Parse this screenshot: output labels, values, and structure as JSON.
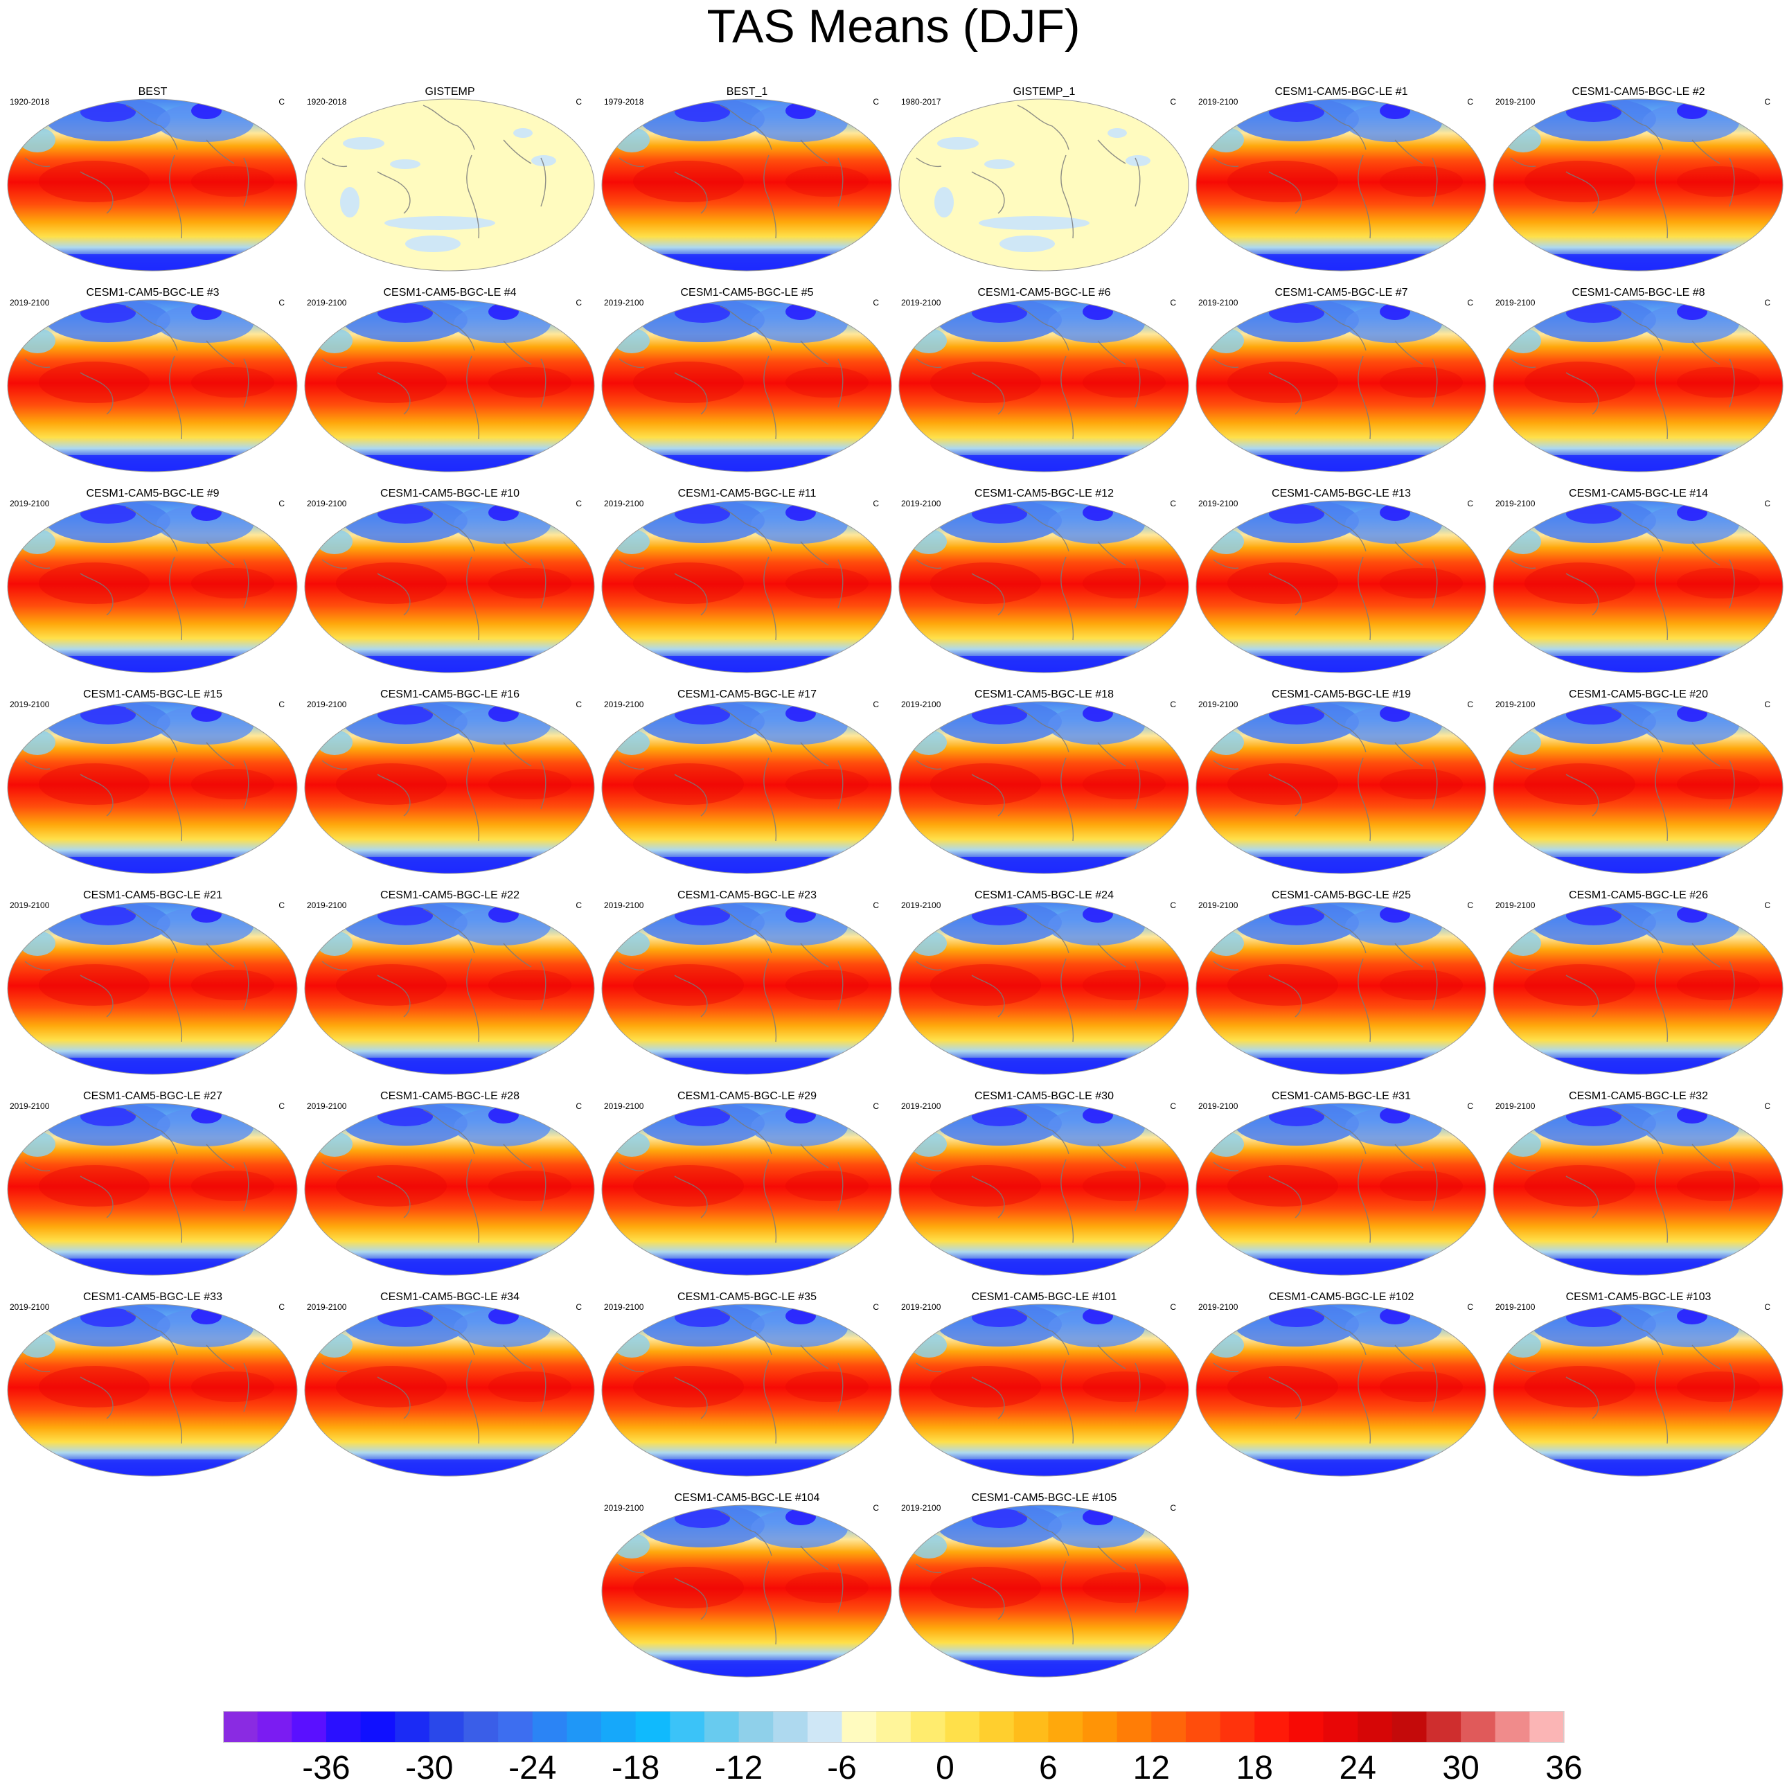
{
  "title": "TAS Means (DJF)",
  "unit_label": "C",
  "panels": [
    {
      "title": "BEST",
      "period": "1920-2018",
      "field": "model"
    },
    {
      "title": "GISTEMP",
      "period": "1920-2018",
      "field": "anomaly"
    },
    {
      "title": "BEST_1",
      "period": "1979-2018",
      "field": "model"
    },
    {
      "title": "GISTEMP_1",
      "period": "1980-2017",
      "field": "anomaly"
    },
    {
      "title": "CESM1-CAM5-BGC-LE #1",
      "period": "2019-2100",
      "field": "model"
    },
    {
      "title": "CESM1-CAM5-BGC-LE #2",
      "period": "2019-2100",
      "field": "model"
    },
    {
      "title": "CESM1-CAM5-BGC-LE #3",
      "period": "2019-2100",
      "field": "model"
    },
    {
      "title": "CESM1-CAM5-BGC-LE #4",
      "period": "2019-2100",
      "field": "model"
    },
    {
      "title": "CESM1-CAM5-BGC-LE #5",
      "period": "2019-2100",
      "field": "model"
    },
    {
      "title": "CESM1-CAM5-BGC-LE #6",
      "period": "2019-2100",
      "field": "model"
    },
    {
      "title": "CESM1-CAM5-BGC-LE #7",
      "period": "2019-2100",
      "field": "model"
    },
    {
      "title": "CESM1-CAM5-BGC-LE #8",
      "period": "2019-2100",
      "field": "model"
    },
    {
      "title": "CESM1-CAM5-BGC-LE #9",
      "period": "2019-2100",
      "field": "model"
    },
    {
      "title": "CESM1-CAM5-BGC-LE #10",
      "period": "2019-2100",
      "field": "model"
    },
    {
      "title": "CESM1-CAM5-BGC-LE #11",
      "period": "2019-2100",
      "field": "model"
    },
    {
      "title": "CESM1-CAM5-BGC-LE #12",
      "period": "2019-2100",
      "field": "model"
    },
    {
      "title": "CESM1-CAM5-BGC-LE #13",
      "period": "2019-2100",
      "field": "model"
    },
    {
      "title": "CESM1-CAM5-BGC-LE #14",
      "period": "2019-2100",
      "field": "model"
    },
    {
      "title": "CESM1-CAM5-BGC-LE #15",
      "period": "2019-2100",
      "field": "model"
    },
    {
      "title": "CESM1-CAM5-BGC-LE #16",
      "period": "2019-2100",
      "field": "model"
    },
    {
      "title": "CESM1-CAM5-BGC-LE #17",
      "period": "2019-2100",
      "field": "model"
    },
    {
      "title": "CESM1-CAM5-BGC-LE #18",
      "period": "2019-2100",
      "field": "model"
    },
    {
      "title": "CESM1-CAM5-BGC-LE #19",
      "period": "2019-2100",
      "field": "model"
    },
    {
      "title": "CESM1-CAM5-BGC-LE #20",
      "period": "2019-2100",
      "field": "model"
    },
    {
      "title": "CESM1-CAM5-BGC-LE #21",
      "period": "2019-2100",
      "field": "model"
    },
    {
      "title": "CESM1-CAM5-BGC-LE #22",
      "period": "2019-2100",
      "field": "model"
    },
    {
      "title": "CESM1-CAM5-BGC-LE #23",
      "period": "2019-2100",
      "field": "model"
    },
    {
      "title": "CESM1-CAM5-BGC-LE #24",
      "period": "2019-2100",
      "field": "model"
    },
    {
      "title": "CESM1-CAM5-BGC-LE #25",
      "period": "2019-2100",
      "field": "model"
    },
    {
      "title": "CESM1-CAM5-BGC-LE #26",
      "period": "2019-2100",
      "field": "model"
    },
    {
      "title": "CESM1-CAM5-BGC-LE #27",
      "period": "2019-2100",
      "field": "model"
    },
    {
      "title": "CESM1-CAM5-BGC-LE #28",
      "period": "2019-2100",
      "field": "model"
    },
    {
      "title": "CESM1-CAM5-BGC-LE #29",
      "period": "2019-2100",
      "field": "model"
    },
    {
      "title": "CESM1-CAM5-BGC-LE #30",
      "period": "2019-2100",
      "field": "model"
    },
    {
      "title": "CESM1-CAM5-BGC-LE #31",
      "period": "2019-2100",
      "field": "model"
    },
    {
      "title": "CESM1-CAM5-BGC-LE #32",
      "period": "2019-2100",
      "field": "model"
    },
    {
      "title": "CESM1-CAM5-BGC-LE #33",
      "period": "2019-2100",
      "field": "model"
    },
    {
      "title": "CESM1-CAM5-BGC-LE #34",
      "period": "2019-2100",
      "field": "model"
    },
    {
      "title": "CESM1-CAM5-BGC-LE #35",
      "period": "2019-2100",
      "field": "model"
    },
    {
      "title": "CESM1-CAM5-BGC-LE #101",
      "period": "2019-2100",
      "field": "model"
    },
    {
      "title": "CESM1-CAM5-BGC-LE #102",
      "period": "2019-2100",
      "field": "model"
    },
    {
      "title": "CESM1-CAM5-BGC-LE #103",
      "period": "2019-2100",
      "field": "model"
    },
    {
      "title": "CESM1-CAM5-BGC-LE #104",
      "period": "2019-2100",
      "field": "model"
    },
    {
      "title": "CESM1-CAM5-BGC-LE #105",
      "period": "2019-2100",
      "field": "model"
    }
  ],
  "colorbar": {
    "tick_labels": [
      "-36",
      "-30",
      "-24",
      "-18",
      "-12",
      "-6",
      "0",
      "6",
      "12",
      "18",
      "24",
      "30",
      "36"
    ],
    "colors": [
      "#8a2be2",
      "#7b1cf2",
      "#5a10ff",
      "#2a10ff",
      "#1010ff",
      "#1b2bf5",
      "#2a48ea",
      "#3a5ee8",
      "#3d6ef0",
      "#2b84f5",
      "#1f97f7",
      "#16a8fa",
      "#10bafd",
      "#3bc3f8",
      "#68cbef",
      "#8fd0ea",
      "#aed9ef",
      "#cfe7f6",
      "#fffbbf",
      "#fff59a",
      "#ffec6e",
      "#ffe04a",
      "#ffcf2e",
      "#ffbc1a",
      "#ffa80c",
      "#ff9406",
      "#ff7d06",
      "#ff650a",
      "#ff4d0c",
      "#ff330c",
      "#ff1a08",
      "#f70a05",
      "#e80606",
      "#d60606",
      "#c40a0a",
      "#cf2e2e",
      "#e05a5a",
      "#f08b8b",
      "#fbb5b5"
    ]
  }
}
